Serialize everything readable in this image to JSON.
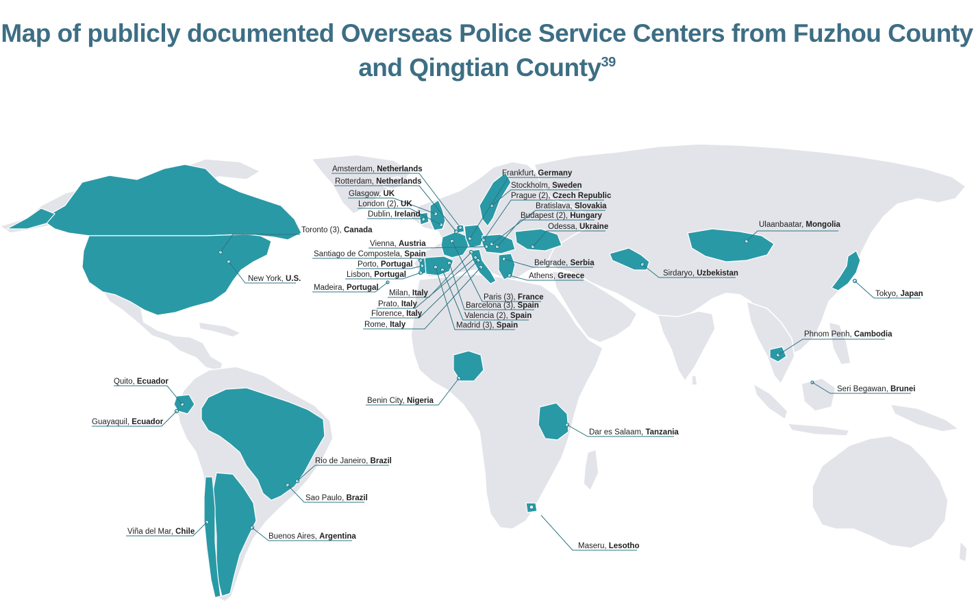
{
  "title": "Map of publicly documented Overseas Police Service Centers from Fuzhou County and Qingtian County",
  "title_footnote": "39",
  "colors": {
    "title": "#3d6e84",
    "land": "#e3e4e9",
    "highlight": "#2a99a6",
    "leader": "#2a7384"
  },
  "labels": [
    {
      "id": "amsterdam",
      "city": "Amsterdam, ",
      "country": "Netherlands"
    },
    {
      "id": "rotterdam",
      "city": "Rotterdam, ",
      "country": "Netherlands"
    },
    {
      "id": "glasgow",
      "city": "Glasgow, ",
      "country": "UK"
    },
    {
      "id": "london",
      "city": "London (2), ",
      "country": "UK"
    },
    {
      "id": "dublin",
      "city": "Dublin, ",
      "country": "Ireland"
    },
    {
      "id": "toronto",
      "city": "Toronto (3), ",
      "country": "Canada"
    },
    {
      "id": "vienna",
      "city": "Vienna, ",
      "country": "Austria"
    },
    {
      "id": "santiago",
      "city": "Santiago de Compostela, ",
      "country": "Spain"
    },
    {
      "id": "porto",
      "city": "Porto, ",
      "country": "Portugal"
    },
    {
      "id": "lisbon",
      "city": "Lisbon, ",
      "country": "Portugal"
    },
    {
      "id": "newyork",
      "city": "New York, ",
      "country": "U.S."
    },
    {
      "id": "madeira",
      "city": "Madeira, ",
      "country": "Portugal"
    },
    {
      "id": "milan",
      "city": "Milan, ",
      "country": "Italy"
    },
    {
      "id": "prato",
      "city": "Prato, ",
      "country": "Italy"
    },
    {
      "id": "florence",
      "city": "Florence, ",
      "country": "Italy"
    },
    {
      "id": "rome",
      "city": "Rome, ",
      "country": "Italy"
    },
    {
      "id": "frankfurt",
      "city": "Frankfurt, ",
      "country": "Germany"
    },
    {
      "id": "stockholm",
      "city": "Stockholm, ",
      "country": "Sweden"
    },
    {
      "id": "prague",
      "city": "Prague (2), ",
      "country": "Czech Republic"
    },
    {
      "id": "bratislava",
      "city": "Bratislava, ",
      "country": "Slovakia"
    },
    {
      "id": "budapest",
      "city": "Budapest (2), ",
      "country": "Hungary"
    },
    {
      "id": "odessa",
      "city": "Odessa, ",
      "country": "Ukraine"
    },
    {
      "id": "belgrade",
      "city": "Belgrade, ",
      "country": "Serbia"
    },
    {
      "id": "athens",
      "city": "Athens, ",
      "country": "Greece"
    },
    {
      "id": "paris",
      "city": "Paris (3), ",
      "country": "France"
    },
    {
      "id": "barcelona",
      "city": "Barcelona (3), ",
      "country": "Spain"
    },
    {
      "id": "valencia",
      "city": "Valencia (2), ",
      "country": "Spain"
    },
    {
      "id": "madrid",
      "city": "Madrid (3), ",
      "country": "Spain"
    },
    {
      "id": "ulaanbaatar",
      "city": "Ulaanbaatar, ",
      "country": "Mongolia"
    },
    {
      "id": "sirdaryo",
      "city": "Sirdaryo, ",
      "country": "Uzbekistan"
    },
    {
      "id": "tokyo",
      "city": "Tokyo, ",
      "country": "Japan"
    },
    {
      "id": "phnompenh",
      "city": "Phnom Penh, ",
      "country": "Cambodia"
    },
    {
      "id": "seribegawan",
      "city": "Seri Begawan, ",
      "country": "Brunei"
    },
    {
      "id": "quito",
      "city": "Quito, ",
      "country": "Ecuador"
    },
    {
      "id": "guayaquil",
      "city": "Guayaquil, ",
      "country": "Ecuador"
    },
    {
      "id": "benincity",
      "city": "Benin City, ",
      "country": "Nigeria"
    },
    {
      "id": "daressalaam",
      "city": "Dar es Salaam, ",
      "country": "Tanzania"
    },
    {
      "id": "riodejaneiro",
      "city": "Rio de Janeiro, ",
      "country": "Brazil"
    },
    {
      "id": "saopaulo",
      "city": "Sao Paulo, ",
      "country": "Brazil"
    },
    {
      "id": "vinadelmar",
      "city": "Viña del Mar, ",
      "country": "Chile"
    },
    {
      "id": "buenosaires",
      "city": "Buenos Aires, ",
      "country": "Argentina"
    },
    {
      "id": "maseru",
      "city": "Maseru, ",
      "country": "Lesotho"
    }
  ]
}
